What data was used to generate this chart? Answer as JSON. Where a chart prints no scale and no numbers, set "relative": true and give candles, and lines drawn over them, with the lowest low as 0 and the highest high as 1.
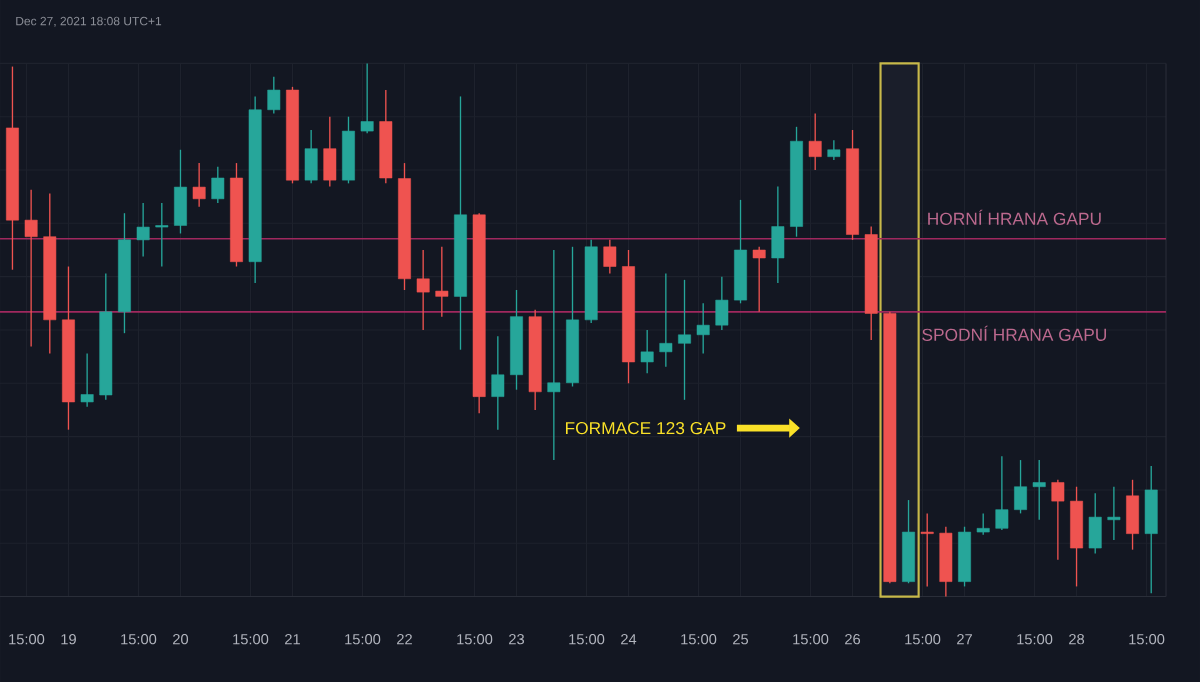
{
  "chart_data": {
    "type": "candlestick",
    "relative": true,
    "grid": true,
    "annotations": [
      "Dec 27, 2021 18:08 UTC+1",
      "FORMACE 123 GAP"
    ],
    "xlim": [
      "2021-12-18T09:20",
      "2021-12-28T19:10"
    ],
    "xticks": [
      {
        "value": "2021-12-18T15:00",
        "label": "15:00"
      },
      {
        "value": "2021-12-19",
        "label": "19"
      },
      {
        "value": "2021-12-19T15:00",
        "label": "15:00"
      },
      {
        "value": "2021-12-20",
        "label": "20"
      },
      {
        "value": "2021-12-20T15:00",
        "label": "15:00"
      },
      {
        "value": "2021-12-21",
        "label": "21"
      },
      {
        "value": "2021-12-21T15:00",
        "label": "15:00"
      },
      {
        "value": "2021-12-22",
        "label": "22"
      },
      {
        "value": "2021-12-22T15:00",
        "label": "15:00"
      },
      {
        "value": "2021-12-23",
        "label": "23"
      },
      {
        "value": "2021-12-23T15:00",
        "label": "15:00"
      },
      {
        "value": "2021-12-24",
        "label": "24"
      },
      {
        "value": "2021-12-24T15:00",
        "label": "15:00"
      },
      {
        "value": "2021-12-25",
        "label": "25"
      },
      {
        "value": "2021-12-25T15:00",
        "label": "15:00"
      },
      {
        "value": "2021-12-26",
        "label": "26"
      },
      {
        "value": "2021-12-26T15:00",
        "label": "15:00"
      },
      {
        "value": "2021-12-27",
        "label": "27"
      },
      {
        "value": "2021-12-27T15:00",
        "label": "15:00"
      },
      {
        "value": "2021-12-28",
        "label": "28"
      },
      {
        "value": "2021-12-28T15:00",
        "label": "15:00"
      }
    ],
    "ref_lines": [
      {
        "axis": "y",
        "value": 0.671,
        "label": "HORNÍ HRANA GAPU",
        "color": "#a0285e"
      },
      {
        "axis": "y",
        "value": 0.534,
        "label": "SPODNÍ HRANA GAPU",
        "color": "#a0285e"
      }
    ],
    "bands": [
      {
        "axis": "x",
        "from": "2021-12-26T06:00",
        "to": "2021-12-26T14:10",
        "color": "#c8b94a"
      }
    ],
    "x": [
      "2021-12-18T12:00",
      "2021-12-18T16:00",
      "2021-12-18T20:00",
      "2021-12-19T00:00",
      "2021-12-19T04:00",
      "2021-12-19T08:00",
      "2021-12-19T12:00",
      "2021-12-19T16:00",
      "2021-12-19T20:00",
      "2021-12-20T00:00",
      "2021-12-20T04:00",
      "2021-12-20T08:00",
      "2021-12-20T12:00",
      "2021-12-20T16:00",
      "2021-12-20T20:00",
      "2021-12-21T00:00",
      "2021-12-21T04:00",
      "2021-12-21T08:00",
      "2021-12-21T12:00",
      "2021-12-21T16:00",
      "2021-12-21T20:00",
      "2021-12-22T00:00",
      "2021-12-22T04:00",
      "2021-12-22T08:00",
      "2021-12-22T12:00",
      "2021-12-22T16:00",
      "2021-12-22T20:00",
      "2021-12-23T00:00",
      "2021-12-23T04:00",
      "2021-12-23T08:00",
      "2021-12-23T12:00",
      "2021-12-23T16:00",
      "2021-12-23T20:00",
      "2021-12-24T00:00",
      "2021-12-24T04:00",
      "2021-12-24T08:00",
      "2021-12-24T12:00",
      "2021-12-24T16:00",
      "2021-12-24T20:00",
      "2021-12-25T00:00",
      "2021-12-25T04:00",
      "2021-12-25T08:00",
      "2021-12-25T12:00",
      "2021-12-25T16:00",
      "2021-12-25T20:00",
      "2021-12-26T00:00",
      "2021-12-26T04:00",
      "2021-12-26T08:00",
      "2021-12-26T12:00",
      "2021-12-26T16:00",
      "2021-12-26T20:00",
      "2021-12-27T00:00",
      "2021-12-27T04:00",
      "2021-12-27T08:00",
      "2021-12-27T12:00",
      "2021-12-27T16:00",
      "2021-12-27T20:00",
      "2021-12-28T00:00",
      "2021-12-28T04:00",
      "2021-12-28T08:00",
      "2021-12-28T12:00",
      "2021-12-28T16:00"
    ],
    "ohlc": [
      [
        0.879,
        0.994,
        0.613,
        0.706
      ],
      [
        0.706,
        0.763,
        0.469,
        0.675
      ],
      [
        0.675,
        0.756,
        0.456,
        0.519
      ],
      [
        0.519,
        0.619,
        0.313,
        0.365
      ],
      [
        0.365,
        0.456,
        0.356,
        0.379
      ],
      [
        0.378,
        0.606,
        0.369,
        0.534
      ],
      [
        0.534,
        0.719,
        0.494,
        0.669
      ],
      [
        0.669,
        0.738,
        0.638,
        0.693
      ],
      [
        0.693,
        0.738,
        0.619,
        0.696
      ],
      [
        0.696,
        0.838,
        0.681,
        0.768
      ],
      [
        0.768,
        0.813,
        0.731,
        0.746
      ],
      [
        0.746,
        0.806,
        0.738,
        0.785
      ],
      [
        0.785,
        0.813,
        0.619,
        0.628
      ],
      [
        0.628,
        0.938,
        0.588,
        0.913
      ],
      [
        0.913,
        0.975,
        0.906,
        0.95
      ],
      [
        0.95,
        0.956,
        0.775,
        0.781
      ],
      [
        0.781,
        0.875,
        0.775,
        0.84
      ],
      [
        0.84,
        0.9,
        0.769,
        0.781
      ],
      [
        0.781,
        0.9,
        0.775,
        0.873
      ],
      [
        0.873,
        1.0,
        0.869,
        0.891
      ],
      [
        0.891,
        0.95,
        0.775,
        0.785
      ],
      [
        0.784,
        0.813,
        0.575,
        0.596
      ],
      [
        0.596,
        0.65,
        0.5,
        0.571
      ],
      [
        0.573,
        0.656,
        0.525,
        0.563
      ],
      [
        0.563,
        0.938,
        0.463,
        0.716
      ],
      [
        0.716,
        0.719,
        0.344,
        0.375
      ],
      [
        0.375,
        0.488,
        0.313,
        0.416
      ],
      [
        0.416,
        0.575,
        0.388,
        0.525
      ],
      [
        0.525,
        0.538,
        0.35,
        0.384
      ],
      [
        0.384,
        0.65,
        0.256,
        0.401
      ],
      [
        0.401,
        0.656,
        0.394,
        0.519
      ],
      [
        0.519,
        0.669,
        0.513,
        0.656
      ],
      [
        0.656,
        0.669,
        0.606,
        0.619
      ],
      [
        0.619,
        0.65,
        0.4,
        0.44
      ],
      [
        0.44,
        0.5,
        0.419,
        0.459
      ],
      [
        0.459,
        0.606,
        0.431,
        0.475
      ],
      [
        0.475,
        0.594,
        0.369,
        0.491
      ],
      [
        0.491,
        0.55,
        0.456,
        0.509
      ],
      [
        0.509,
        0.6,
        0.5,
        0.556
      ],
      [
        0.556,
        0.744,
        0.55,
        0.65
      ],
      [
        0.65,
        0.656,
        0.534,
        0.635
      ],
      [
        0.635,
        0.769,
        0.588,
        0.694
      ],
      [
        0.694,
        0.881,
        0.675,
        0.854
      ],
      [
        0.854,
        0.906,
        0.8,
        0.825
      ],
      [
        0.825,
        0.856,
        0.819,
        0.838
      ],
      [
        0.84,
        0.875,
        0.669,
        0.679
      ],
      [
        0.679,
        0.694,
        0.481,
        0.531
      ],
      [
        0.531,
        0.534,
        0.025,
        0.028
      ],
      [
        0.028,
        0.181,
        0.025,
        0.121
      ],
      [
        0.121,
        0.156,
        0.019,
        0.118
      ],
      [
        0.119,
        0.131,
        0.0,
        0.028
      ],
      [
        0.028,
        0.131,
        0.019,
        0.121
      ],
      [
        0.121,
        0.156,
        0.116,
        0.128
      ],
      [
        0.128,
        0.263,
        0.125,
        0.163
      ],
      [
        0.163,
        0.256,
        0.156,
        0.206
      ],
      [
        0.206,
        0.256,
        0.144,
        0.214
      ],
      [
        0.214,
        0.219,
        0.069,
        0.179
      ],
      [
        0.179,
        0.206,
        0.019,
        0.091
      ],
      [
        0.091,
        0.194,
        0.081,
        0.149
      ],
      [
        0.144,
        0.206,
        0.106,
        0.149
      ],
      [
        0.189,
        0.219,
        0.088,
        0.118
      ],
      [
        0.118,
        0.245,
        0.006,
        0.2
      ]
    ],
    "colors": [
      "#ef5350",
      "#ef5350",
      "#ef5350",
      "#ef5350",
      "#26a69a",
      "#26a69a",
      "#26a69a",
      "#26a69a",
      "#26a69a",
      "#26a69a",
      "#ef5350",
      "#26a69a",
      "#ef5350",
      "#26a69a",
      "#26a69a",
      "#ef5350",
      "#26a69a",
      "#ef5350",
      "#26a69a",
      "#26a69a",
      "#ef5350",
      "#ef5350",
      "#ef5350",
      "#ef5350",
      "#26a69a",
      "#ef5350",
      "#26a69a",
      "#26a69a",
      "#ef5350",
      "#26a69a",
      "#26a69a",
      "#26a69a",
      "#ef5350",
      "#ef5350",
      "#26a69a",
      "#26a69a",
      "#26a69a",
      "#26a69a",
      "#26a69a",
      "#26a69a",
      "#ef5350",
      "#26a69a",
      "#26a69a",
      "#ef5350",
      "#26a69a",
      "#ef5350",
      "#ef5350",
      "#ef5350",
      "#26a69a",
      "#ef5350",
      "#ef5350",
      "#26a69a",
      "#26a69a",
      "#26a69a",
      "#26a69a",
      "#26a69a",
      "#ef5350",
      "#ef5350",
      "#26a69a",
      "#26a69a",
      "#ef5350",
      "#26a69a"
    ]
  }
}
